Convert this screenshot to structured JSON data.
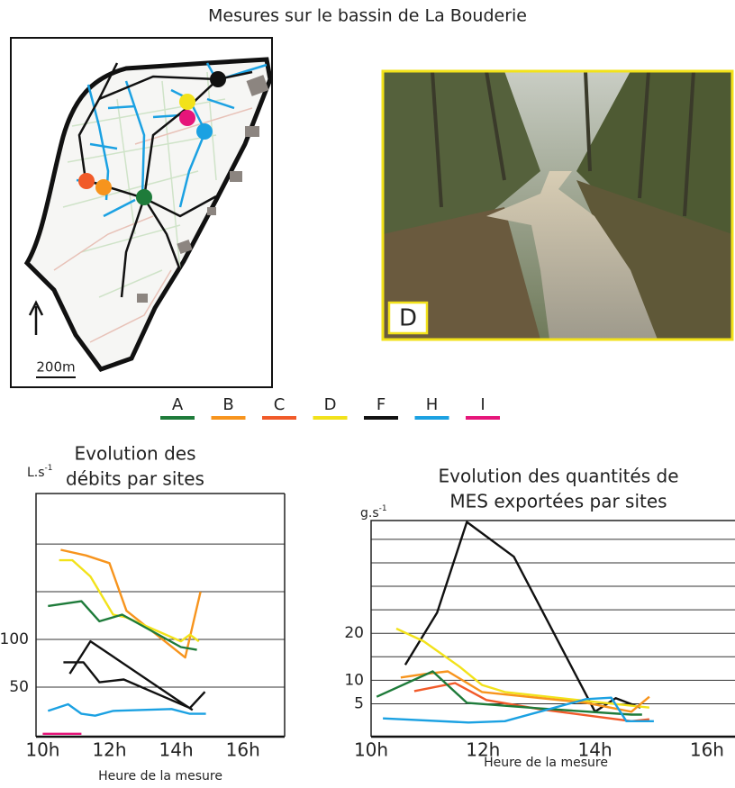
{
  "title": "Mesures sur le bassin de La Bouderie",
  "map": {
    "scale_label": "200m"
  },
  "photo": {
    "label": "D"
  },
  "legend": [
    "A",
    "B",
    "C",
    "D",
    "F",
    "H",
    "I"
  ],
  "chart_data": [
    {
      "type": "line",
      "title": [
        "Evolution des",
        "débits par sites"
      ],
      "unit": {
        "base": "L.s",
        "sup": "-1"
      },
      "x_label": "Heure de la mesure",
      "xlim": [
        9.8,
        17.25
      ],
      "xticks": [
        {
          "value": 10,
          "label": "10h"
        },
        {
          "value": 12,
          "label": "12h"
        },
        {
          "value": 14,
          "label": "14h"
        },
        {
          "value": 16,
          "label": "16h"
        }
      ],
      "ylim": [
        -2,
        253
      ],
      "yticks": [
        100,
        50
      ],
      "ygrid": [
        50,
        100,
        150,
        200
      ],
      "series": [
        {
          "name": "B",
          "color": "#f7941d",
          "x": [
            10.54,
            11.3,
            12,
            12.51,
            14.27,
            14.73
          ],
          "values": [
            194,
            188,
            180,
            130,
            81,
            150
          ]
        },
        {
          "name": "D",
          "color": "#f2e21a",
          "x": [
            10.49,
            10.89,
            11.43,
            12.11,
            12.51,
            14.14,
            14.41,
            14.68
          ],
          "values": [
            183,
            183,
            166,
            126,
            123,
            98,
            105,
            98
          ]
        },
        {
          "name": "A",
          "color": "#1e7b3a",
          "x": [
            10.16,
            11.16,
            11.7,
            12.38,
            14.14,
            14.62
          ],
          "values": [
            135,
            140,
            119,
            126,
            92,
            89
          ]
        },
        {
          "name": "F",
          "color": "#111111",
          "x": [
            10.81,
            11.43,
            14.14,
            14.49,
            null,
            10.62,
            11.22,
            11.7,
            12.43,
            14.41,
            14.86
          ],
          "values": [
            64,
            98,
            34,
            26,
            null,
            76,
            76,
            55,
            58,
            28,
            45
          ]
        },
        {
          "name": "H",
          "color": "#1ba1e2",
          "x": [
            10.16,
            10.76,
            11.16,
            11.57,
            12.11,
            13.86,
            14.41,
            14.89
          ],
          "values": [
            25,
            32,
            22,
            20,
            25,
            27,
            22,
            22
          ]
        },
        {
          "name": "I",
          "color": "#e6157a",
          "x": [
            10,
            11.16
          ],
          "values": [
            1,
            1
          ]
        }
      ]
    },
    {
      "type": "line",
      "title": [
        "Evolution des quantités de",
        "MES exportées par sites"
      ],
      "unit": {
        "base": "g.s",
        "sup": "-1"
      },
      "x_label": "Heure de la mesure",
      "xlim": [
        10,
        16.5
      ],
      "xticks": [
        {
          "value": 10,
          "label": "10h"
        },
        {
          "value": 12,
          "label": "12h"
        },
        {
          "value": 14,
          "label": "14h"
        },
        {
          "value": 16,
          "label": "16h"
        }
      ],
      "ylim": [
        -2,
        44
      ],
      "yticks": [
        20,
        10,
        5
      ],
      "ygrid": [
        5,
        10,
        15,
        20,
        25,
        30,
        35,
        40
      ],
      "series": [
        {
          "name": "F",
          "color": "#111111",
          "x": [
            10.61,
            11.18,
            11.71,
            12.55,
            14.0,
            14.37,
            14.81
          ],
          "values": [
            13.3,
            24.4,
            43.7,
            36.3,
            3.3,
            6.2,
            4.2
          ]
        },
        {
          "name": "D",
          "color": "#f2e21a",
          "x": [
            10.45,
            10.94,
            11.58,
            11.98,
            12.39,
            13.84,
            14.97
          ],
          "values": [
            21,
            18.3,
            12.9,
            9,
            7.5,
            5.6,
            4.2
          ]
        },
        {
          "name": "B",
          "color": "#f7941d",
          "x": [
            10.53,
            10.94,
            11.37,
            11.98,
            13.84,
            14.65,
            14.97
          ],
          "values": [
            10.6,
            11.3,
            11.9,
            7.5,
            5.2,
            3.3,
            6.5
          ]
        },
        {
          "name": "C",
          "color": "#f15a29",
          "x": [
            10.77,
            11.5,
            12.06,
            13.03,
            14.65,
            14.97
          ],
          "values": [
            7.7,
            9.4,
            5.8,
            3.8,
            1.3,
            1.7
          ]
        },
        {
          "name": "A",
          "color": "#1e7b3a",
          "x": [
            10.1,
            11.1,
            11.71,
            13.03,
            14.65,
            14.84
          ],
          "values": [
            6.5,
            11.9,
            5.2,
            4.0,
            2.7,
            2.7
          ]
        },
        {
          "name": "H",
          "color": "#1ba1e2",
          "x": [
            10.21,
            11.74,
            12.39,
            13.84,
            14.29,
            14.56,
            15.05
          ],
          "values": [
            1.9,
            1,
            1.3,
            6,
            6.3,
            1.3,
            1.3
          ]
        }
      ]
    }
  ]
}
